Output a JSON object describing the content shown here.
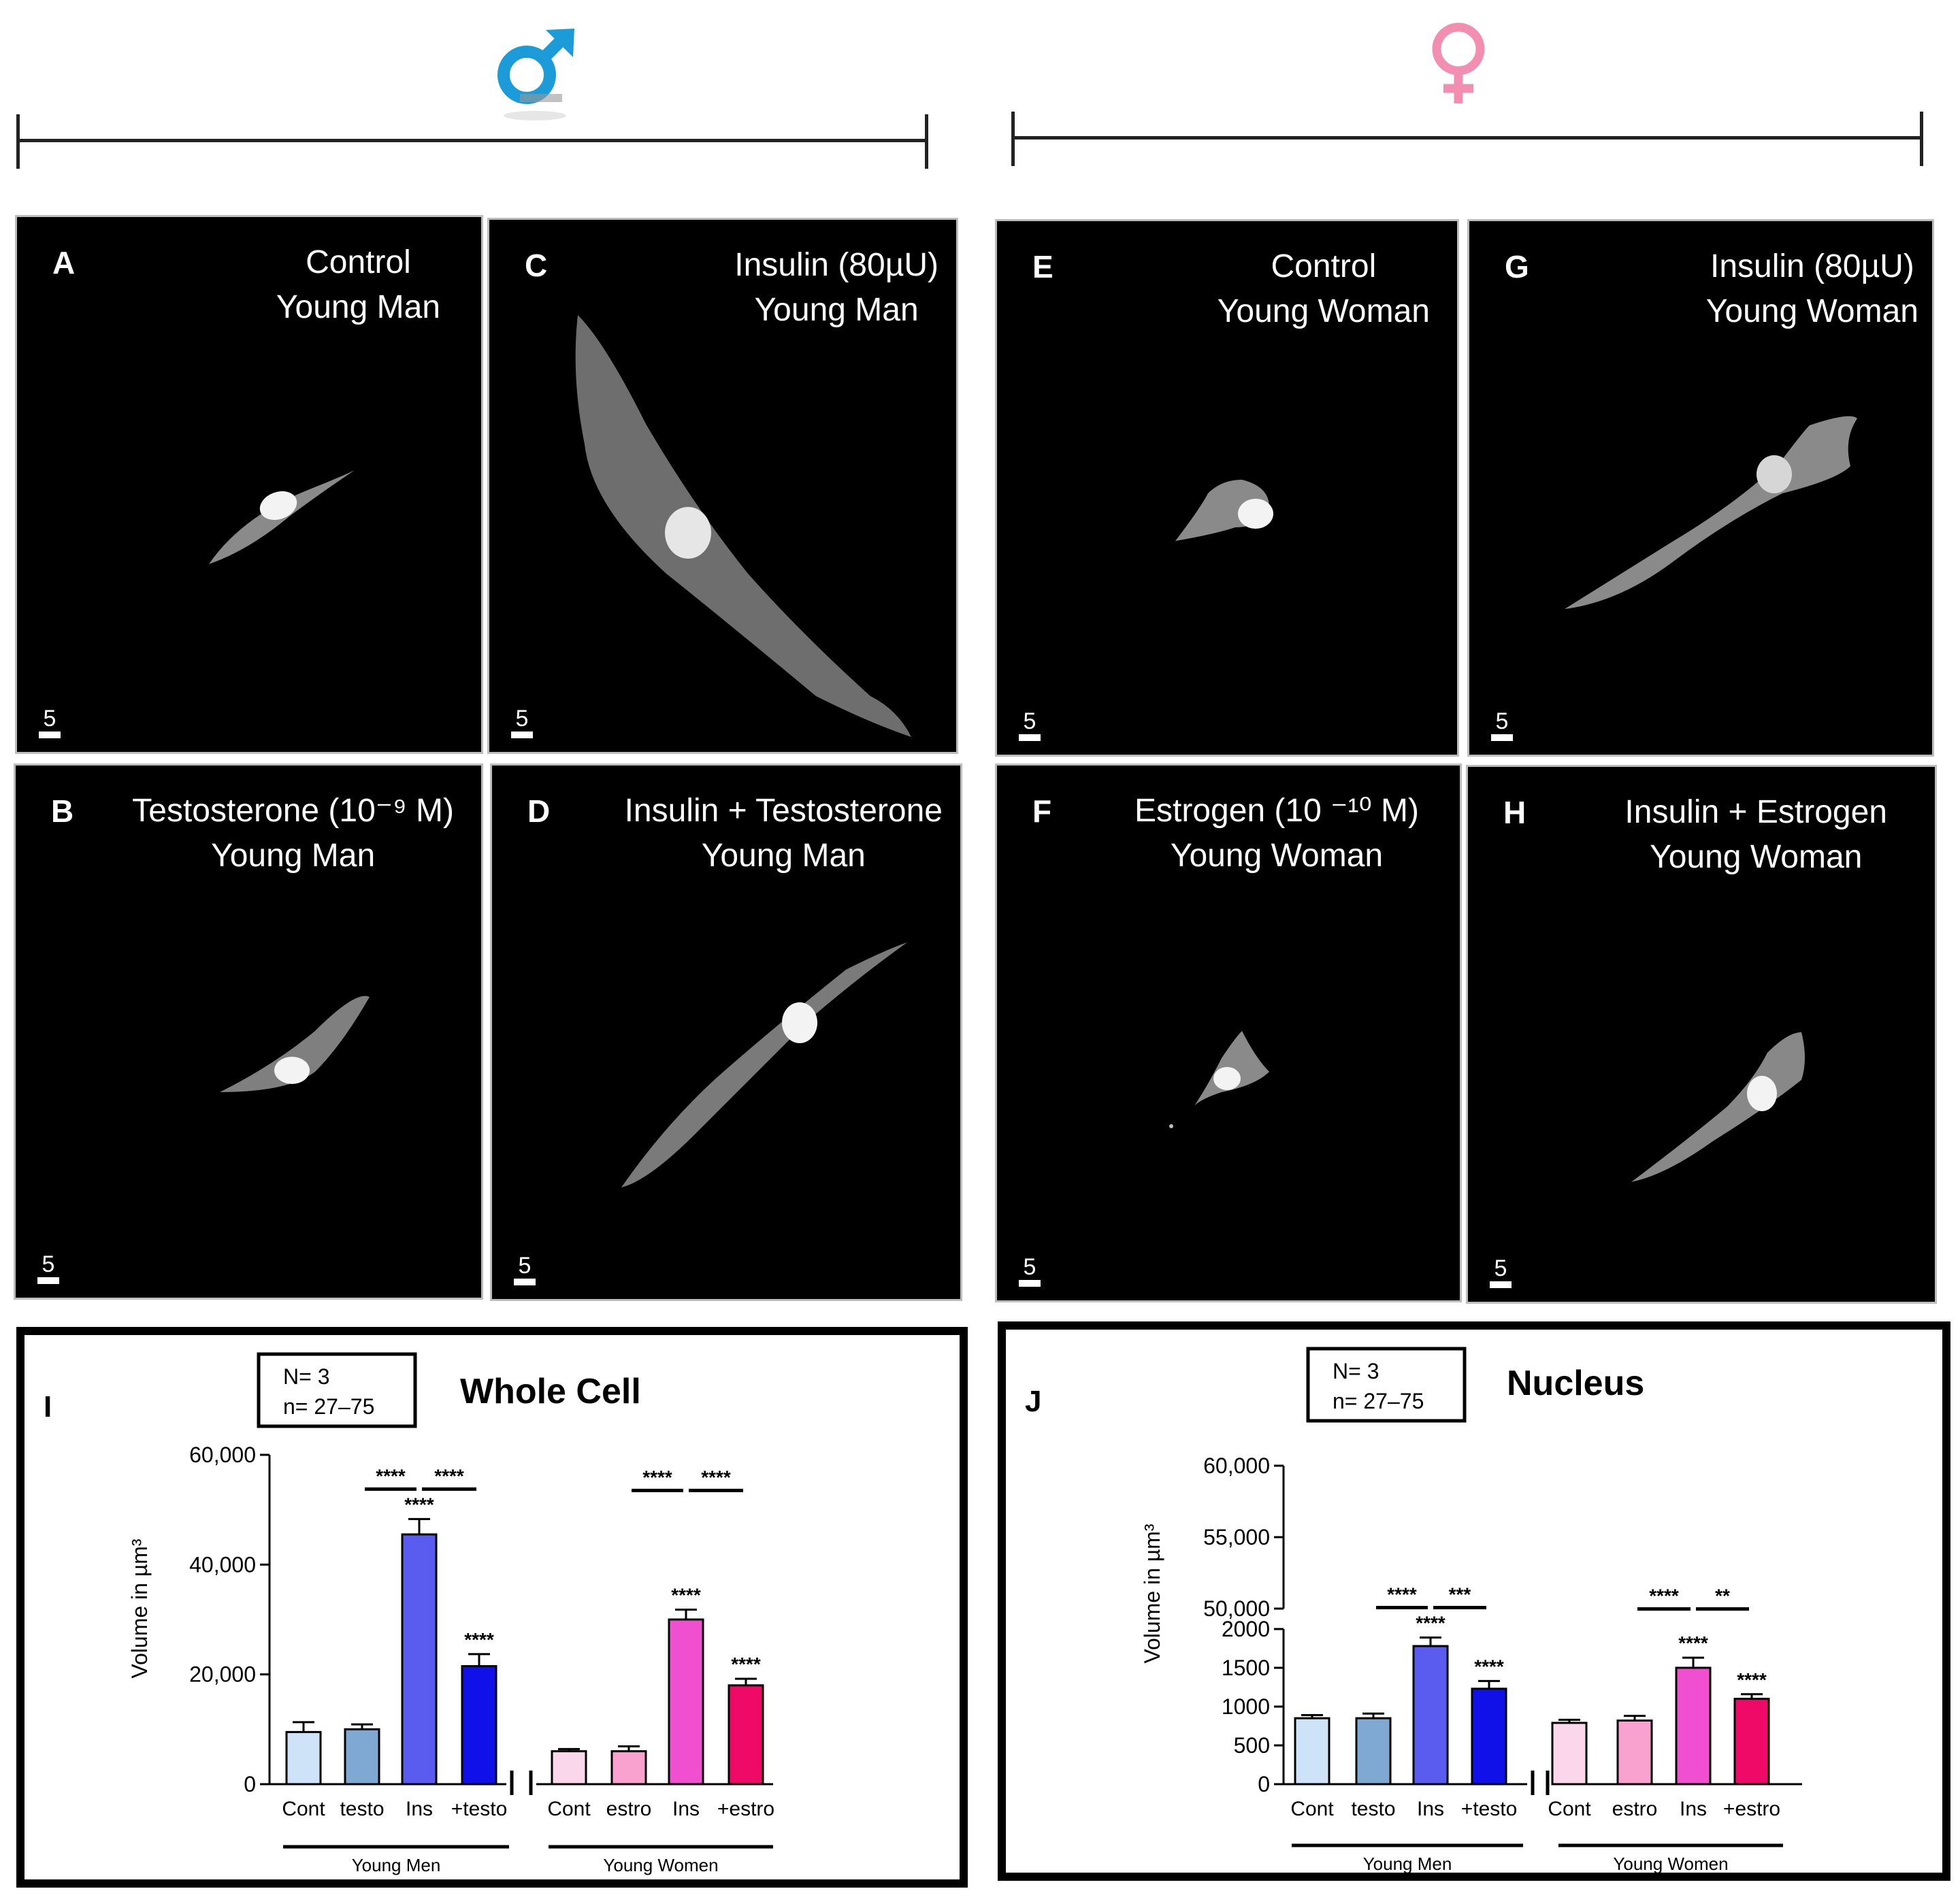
{
  "header": {
    "male_symbol": "♂",
    "female_symbol": "♀",
    "male_color": "#1b9bd7",
    "female_color": "#f28fb1"
  },
  "panels": [
    {
      "id": "A",
      "line1": "Control",
      "line2": "Young Man",
      "scale": "5"
    },
    {
      "id": "B",
      "line1": "Testosterone (10⁻⁹ M)",
      "line2": "Young Man",
      "scale": "5"
    },
    {
      "id": "C",
      "line1": "Insulin (80µU)",
      "line2": "Young Man",
      "scale": "5"
    },
    {
      "id": "D",
      "line1": "Insulin + Testosterone",
      "line2": "Young Man",
      "scale": "5"
    },
    {
      "id": "E",
      "line1": "Control",
      "line2": "Young Woman",
      "scale": "5"
    },
    {
      "id": "F",
      "line1": "Estrogen (10 ⁻¹⁰ M)",
      "line2": "Young Woman",
      "scale": "5"
    },
    {
      "id": "G",
      "line1": "Insulin (80µU)",
      "line2": "Young Woman",
      "scale": "5"
    },
    {
      "id": "H",
      "line1": "Insulin + Estrogen",
      "line2": "Young Woman",
      "scale": "5"
    }
  ],
  "chart_data": [
    {
      "panel": "I",
      "type": "bar",
      "title": "Whole Cell",
      "legend_box": [
        "N= 3",
        "n= 27–75"
      ],
      "ylabel": "Volume in µm³",
      "ylim": [
        0,
        60000
      ],
      "yticks": [
        0,
        20000,
        40000,
        60000
      ],
      "ytick_labels": [
        "0",
        "20,000",
        "40,000",
        "60,000"
      ],
      "groups": [
        "Young Men",
        "Young Women"
      ],
      "categories": [
        "Cont",
        "testo",
        "Ins",
        "+testo",
        "Cont",
        "estro",
        "Ins",
        "+estro"
      ],
      "values": [
        9500,
        10000,
        45500,
        21500,
        6000,
        6000,
        30000,
        18000
      ],
      "errors": [
        1800,
        900,
        2800,
        2200,
        400,
        900,
        1800,
        1200
      ],
      "colors": [
        "#cfe3f8",
        "#7fa8d3",
        "#5a5cf0",
        "#1010e8",
        "#fbd7ec",
        "#f9a1cf",
        "#f050cf",
        "#ee0a66"
      ],
      "bar_stars": [
        "",
        "",
        "****",
        "****",
        "",
        "",
        "****",
        "****"
      ],
      "comparisons": [
        {
          "from": 1,
          "to": 2,
          "label": "****"
        },
        {
          "from": 2,
          "to": 3,
          "label": "****"
        },
        {
          "from": 5,
          "to": 6,
          "label": "****"
        },
        {
          "from": 6,
          "to": 7,
          "label": "****"
        }
      ]
    },
    {
      "panel": "J",
      "type": "bar",
      "title": "Nucleus",
      "legend_box": [
        "N= 3",
        "n= 27–75"
      ],
      "ylabel": "Volume in µm³",
      "ylim": [
        0,
        2000
      ],
      "yticks_lower": [
        0,
        500,
        1000,
        1500,
        2000
      ],
      "ytick_labels_lower": [
        "0",
        "500",
        "1000",
        "1500",
        "2000"
      ],
      "ylim_upper": [
        50000,
        60000
      ],
      "ytick_labels_upper": [
        "50,000",
        "55,000",
        "60,000"
      ],
      "groups": [
        "Young Men",
        "Young Women"
      ],
      "categories": [
        "Cont",
        "testo",
        "Ins",
        "+testo",
        "Cont",
        "estro",
        "Ins",
        "+estro"
      ],
      "values": [
        850,
        850,
        1780,
        1230,
        790,
        820,
        1500,
        1100
      ],
      "errors": [
        40,
        60,
        110,
        100,
        40,
        60,
        130,
        60
      ],
      "colors": [
        "#cfe3f8",
        "#7fa8d3",
        "#5a5cf0",
        "#1010e8",
        "#fbd7ec",
        "#f9a1cf",
        "#f050cf",
        "#ee0a66"
      ],
      "bar_stars": [
        "",
        "",
        "****",
        "****",
        "",
        "",
        "****",
        "****"
      ],
      "comparisons": [
        {
          "from": 1,
          "to": 2,
          "label": "****"
        },
        {
          "from": 2,
          "to": 3,
          "label": "***"
        },
        {
          "from": 5,
          "to": 6,
          "label": "****"
        },
        {
          "from": 6,
          "to": 7,
          "label": "**"
        }
      ]
    }
  ]
}
